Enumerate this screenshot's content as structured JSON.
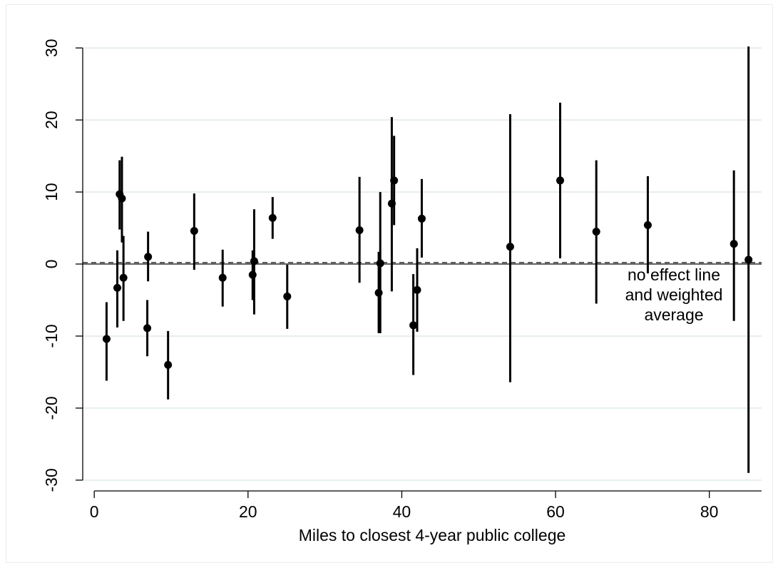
{
  "chart_data": {
    "type": "scatter",
    "title": "",
    "xlabel": "Miles to closest 4-year public college",
    "ylabel": "",
    "xlim": [
      -1.5,
      86.8
    ],
    "ylim": [
      -31.5,
      32
    ],
    "x_ticks": [
      0,
      20,
      40,
      60,
      80
    ],
    "y_ticks": [
      -30,
      -20,
      -10,
      0,
      10,
      20,
      30
    ],
    "x_tick_labels": [
      "0",
      "20",
      "40",
      "60",
      "80"
    ],
    "y_tick_labels": [
      "-30",
      "-20",
      "-10",
      "0",
      "10",
      "20",
      "30"
    ],
    "grid": "horizontal",
    "reference_lines": {
      "no_effect": 0,
      "weighted_average": 0.2
    },
    "annotation": [
      "no effect line",
      "and weighted",
      "average"
    ],
    "points": [
      {
        "x": 1.6,
        "y": -10.4,
        "lo": -16.2,
        "hi": -5.3
      },
      {
        "x": 3.0,
        "y": -3.3,
        "lo": -8.8,
        "hi": 1.9
      },
      {
        "x": 3.3,
        "y": 9.7,
        "lo": 4.8,
        "hi": 14.4
      },
      {
        "x": 3.6,
        "y": 9.1,
        "lo": 3.0,
        "hi": 14.9
      },
      {
        "x": 3.8,
        "y": -1.9,
        "lo": -7.9,
        "hi": 3.9
      },
      {
        "x": 6.9,
        "y": -8.9,
        "lo": -12.8,
        "hi": -5.0
      },
      {
        "x": 7.0,
        "y": 1.0,
        "lo": -2.4,
        "hi": 4.5
      },
      {
        "x": 9.6,
        "y": -14.0,
        "lo": -18.8,
        "hi": -9.3
      },
      {
        "x": 13.0,
        "y": 4.6,
        "lo": -0.8,
        "hi": 9.8
      },
      {
        "x": 16.7,
        "y": -1.9,
        "lo": -5.9,
        "hi": 2.0
      },
      {
        "x": 20.6,
        "y": -1.5,
        "lo": -5.0,
        "hi": 1.9
      },
      {
        "x": 20.8,
        "y": 0.4,
        "lo": -7.0,
        "hi": 7.6
      },
      {
        "x": 23.2,
        "y": 6.4,
        "lo": 3.5,
        "hi": 9.3
      },
      {
        "x": 25.1,
        "y": -4.5,
        "lo": -9.0,
        "hi": -0.1
      },
      {
        "x": 34.5,
        "y": 4.7,
        "lo": -2.6,
        "hi": 12.1
      },
      {
        "x": 37.0,
        "y": -4.0,
        "lo": -9.6,
        "hi": 1.7
      },
      {
        "x": 37.2,
        "y": 0.1,
        "lo": -9.6,
        "hi": 10.0
      },
      {
        "x": 38.7,
        "y": 8.4,
        "lo": -3.8,
        "hi": 20.4
      },
      {
        "x": 39.0,
        "y": 11.6,
        "lo": 5.4,
        "hi": 17.8
      },
      {
        "x": 41.5,
        "y": -8.5,
        "lo": -15.4,
        "hi": -1.4
      },
      {
        "x": 42.0,
        "y": -3.6,
        "lo": -9.4,
        "hi": 2.2
      },
      {
        "x": 42.6,
        "y": 6.3,
        "lo": 0.9,
        "hi": 11.8
      },
      {
        "x": 54.1,
        "y": 2.4,
        "lo": -16.4,
        "hi": 20.8
      },
      {
        "x": 60.6,
        "y": 11.6,
        "lo": 0.8,
        "hi": 22.4
      },
      {
        "x": 65.3,
        "y": 4.5,
        "lo": -5.5,
        "hi": 14.4
      },
      {
        "x": 72.0,
        "y": 5.4,
        "lo": -1.3,
        "hi": 12.2
      },
      {
        "x": 83.2,
        "y": 2.8,
        "lo": -7.9,
        "hi": 13.0
      },
      {
        "x": 85.1,
        "y": 0.6,
        "lo": -29.0,
        "hi": 30.2
      }
    ]
  }
}
